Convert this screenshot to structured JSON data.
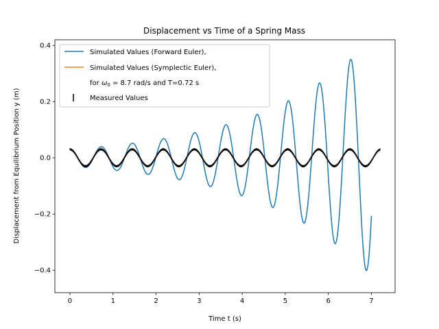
{
  "chart_data": {
    "type": "line",
    "title": "Displacement vs Time of a Spring Mass",
    "xlabel": "Time t (s)",
    "ylabel": "Displacement from Equilibrium Position y (m)",
    "xlim": [
      -0.35,
      7.55
    ],
    "ylim": [
      -0.48,
      0.42
    ],
    "xticks": [
      0,
      1,
      2,
      3,
      4,
      5,
      6,
      7
    ],
    "yticks": [
      -0.4,
      -0.2,
      0.0,
      0.2,
      0.4
    ],
    "ytick_labels": [
      "−0.4",
      "−0.2",
      "0.0",
      "0.2",
      "0.4"
    ],
    "grid": false,
    "legend_position": "upper-left",
    "colors": {
      "forward": "#1f77b4",
      "symplectic": "#ff7f0e",
      "measured": "#000000"
    },
    "model": {
      "y0": 0.03,
      "omega": 8.7,
      "dt": 0.01,
      "t_end": 7.0,
      "measured_t_end": 7.2
    },
    "series": [
      {
        "name": "Simulated Values (Forward Euler),",
        "method": "forward_euler"
      },
      {
        "name": "Simulated Values (Symplectic Euler),",
        "method": "symplectic_euler"
      },
      {
        "name": "Measured Values",
        "method": "measured"
      }
    ],
    "legend_note_prefix": "for ",
    "legend_note_omega": "ω",
    "legend_note_sub": "0",
    "legend_note_suffix": " = 8.7 rad/s and T=0.72 s"
  }
}
